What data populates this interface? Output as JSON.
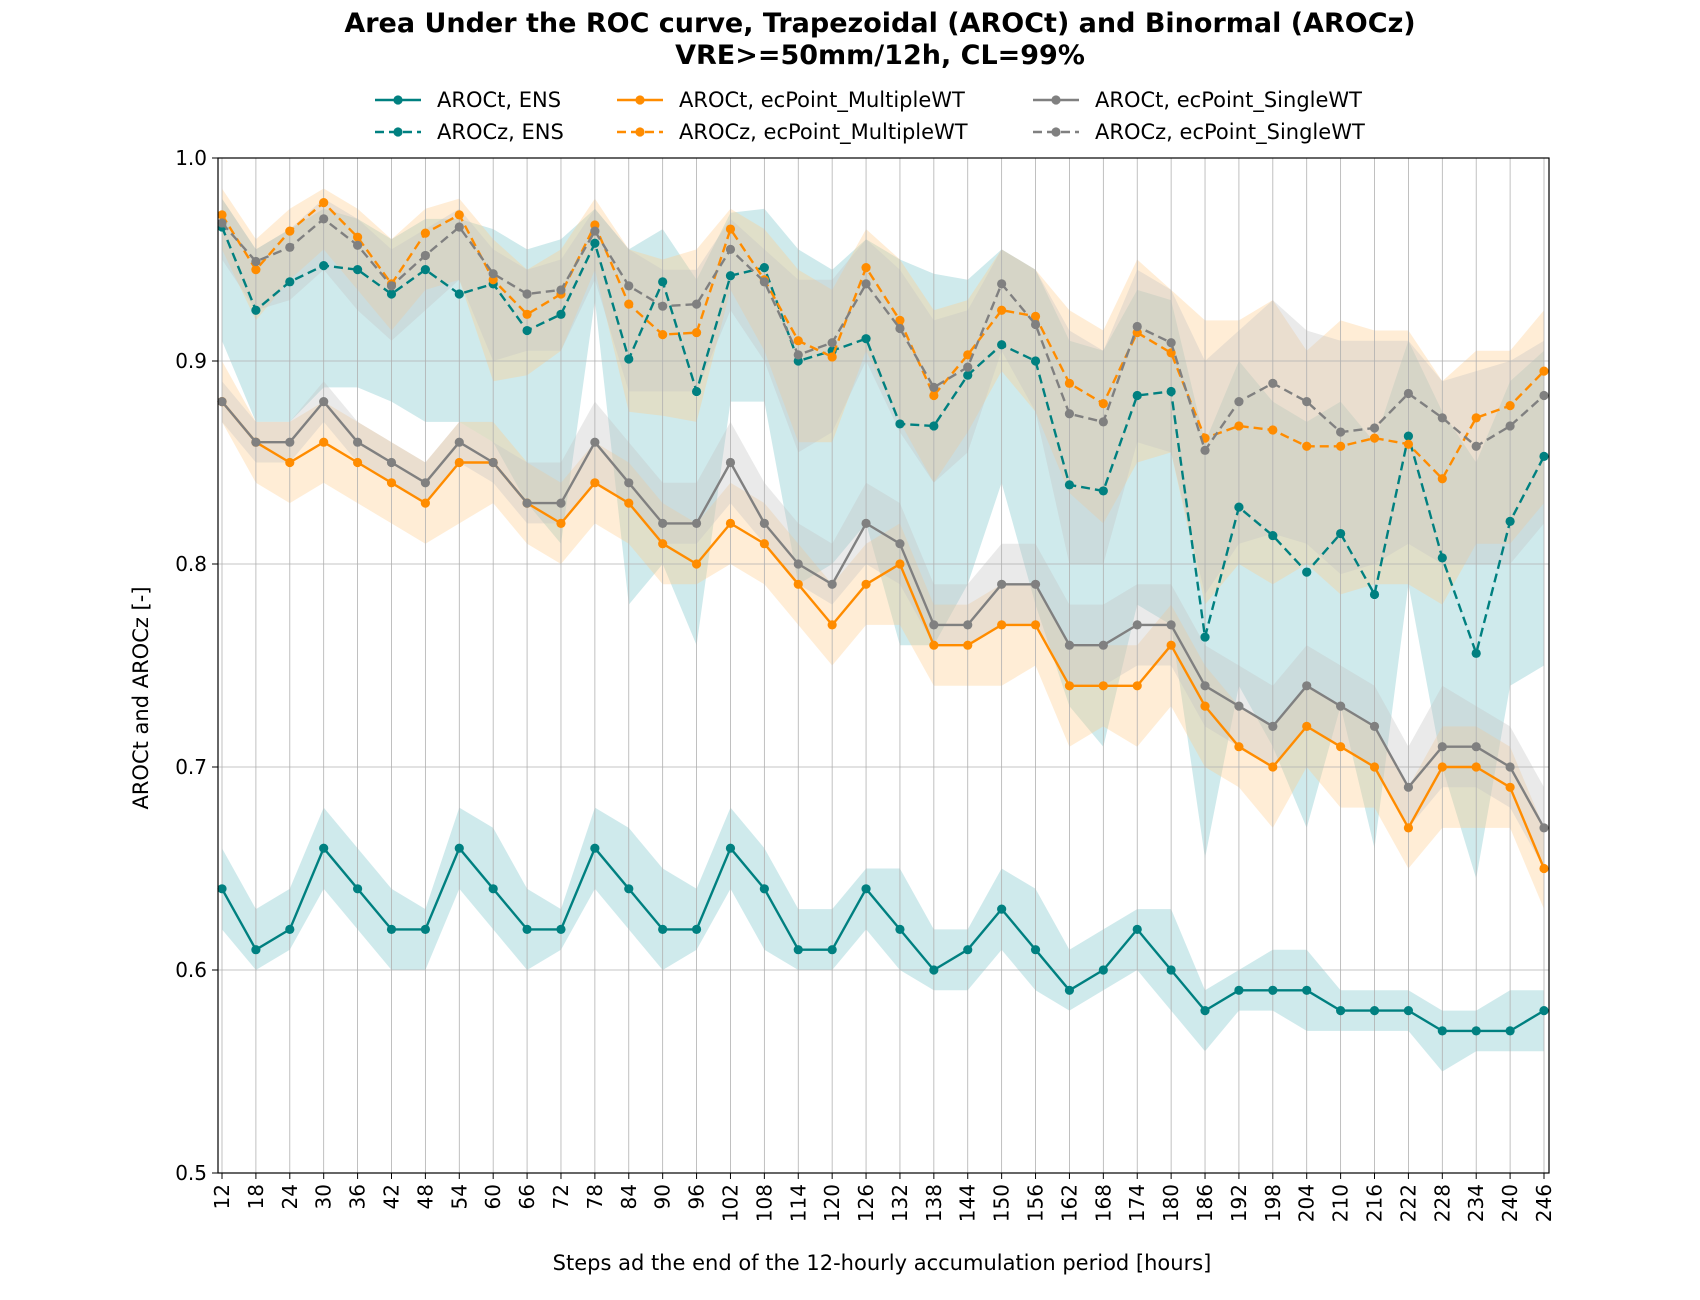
{
  "chart_data": {
    "type": "line",
    "title": "Area Under the ROC curve, Trapezoidal (AROCt) and Binormal (AROCz)",
    "subtitle": "VRE>=50mm/12h, CL=99%",
    "xlabel": "Steps ad the end of the 12-hourly accumulation period [hours]",
    "ylabel": "AROCt and AROCz [-]",
    "ylim": [
      0.5,
      1.0
    ],
    "yticks": [
      "0.5",
      "0.6",
      "0.7",
      "0.8",
      "0.9",
      "1.0"
    ],
    "grid": true,
    "legend_position": "top",
    "x": [
      12,
      18,
      24,
      30,
      36,
      42,
      48,
      54,
      60,
      66,
      72,
      78,
      84,
      90,
      96,
      102,
      108,
      114,
      120,
      126,
      132,
      138,
      144,
      150,
      156,
      162,
      168,
      174,
      180,
      186,
      192,
      198,
      204,
      210,
      216,
      222,
      228,
      234,
      240,
      246
    ],
    "series": [
      {
        "name": "AROCt, ENS",
        "color": "#008080",
        "linestyle": "solid",
        "values": [
          0.64,
          0.61,
          0.62,
          0.66,
          0.64,
          0.62,
          0.62,
          0.66,
          0.64,
          0.62,
          0.62,
          0.66,
          0.64,
          0.62,
          0.62,
          0.66,
          0.64,
          0.61,
          0.61,
          0.64,
          0.62,
          0.6,
          0.61,
          0.63,
          0.61,
          0.59,
          0.6,
          0.62,
          0.6,
          0.58,
          0.59,
          0.59,
          0.59,
          0.58,
          0.58,
          0.58,
          0.57,
          0.57,
          0.57,
          0.58
        ],
        "lower": [
          0.62,
          0.6,
          0.61,
          0.64,
          0.62,
          0.6,
          0.6,
          0.64,
          0.62,
          0.6,
          0.61,
          0.64,
          0.62,
          0.6,
          0.61,
          0.64,
          0.61,
          0.6,
          0.6,
          0.62,
          0.6,
          0.59,
          0.59,
          0.61,
          0.59,
          0.58,
          0.59,
          0.6,
          0.58,
          0.56,
          0.58,
          0.58,
          0.57,
          0.57,
          0.57,
          0.57,
          0.55,
          0.56,
          0.56,
          0.56
        ],
        "upper": [
          0.66,
          0.63,
          0.64,
          0.68,
          0.66,
          0.64,
          0.63,
          0.68,
          0.67,
          0.64,
          0.63,
          0.68,
          0.67,
          0.65,
          0.64,
          0.68,
          0.66,
          0.63,
          0.63,
          0.65,
          0.65,
          0.62,
          0.62,
          0.65,
          0.64,
          0.61,
          0.62,
          0.63,
          0.63,
          0.59,
          0.6,
          0.61,
          0.61,
          0.59,
          0.59,
          0.59,
          0.58,
          0.58,
          0.59,
          0.59
        ]
      },
      {
        "name": "AROCz, ENS",
        "color": "#008080",
        "linestyle": "dashed",
        "values": [
          0.966,
          0.925,
          0.939,
          0.947,
          0.945,
          0.933,
          0.945,
          0.933,
          0.938,
          0.915,
          0.923,
          0.958,
          0.901,
          0.939,
          0.885,
          0.942,
          0.946,
          0.9,
          0.905,
          0.911,
          0.869,
          0.868,
          0.893,
          0.908,
          0.9,
          0.839,
          0.836,
          0.883,
          0.885,
          0.764,
          0.828,
          0.814,
          0.796,
          0.815,
          0.785,
          0.863,
          0.803,
          0.756,
          0.821,
          0.853
        ],
        "lower": [
          0.91,
          0.87,
          0.87,
          0.887,
          0.887,
          0.88,
          0.87,
          0.87,
          0.86,
          0.83,
          0.81,
          0.93,
          0.78,
          0.8,
          0.76,
          0.88,
          0.88,
          0.79,
          0.8,
          0.82,
          0.76,
          0.76,
          0.79,
          0.84,
          0.78,
          0.73,
          0.71,
          0.78,
          0.77,
          0.655,
          0.74,
          0.71,
          0.67,
          0.73,
          0.66,
          0.79,
          0.7,
          0.645,
          0.74,
          0.75
        ],
        "upper": [
          0.98,
          0.955,
          0.965,
          0.975,
          0.97,
          0.96,
          0.97,
          0.97,
          0.965,
          0.955,
          0.96,
          0.975,
          0.955,
          0.965,
          0.94,
          0.973,
          0.975,
          0.955,
          0.945,
          0.96,
          0.95,
          0.943,
          0.94,
          0.955,
          0.945,
          0.91,
          0.905,
          0.935,
          0.93,
          0.86,
          0.9,
          0.88,
          0.87,
          0.88,
          0.86,
          0.91,
          0.875,
          0.85,
          0.89,
          0.905
        ]
      },
      {
        "name": "AROCt, ecPoint_MultipleWT",
        "color": "#ff8c00",
        "linestyle": "solid",
        "values": [
          0.88,
          0.86,
          0.85,
          0.86,
          0.85,
          0.84,
          0.83,
          0.85,
          0.85,
          0.83,
          0.82,
          0.84,
          0.83,
          0.81,
          0.8,
          0.82,
          0.81,
          0.79,
          0.77,
          0.79,
          0.8,
          0.76,
          0.76,
          0.77,
          0.77,
          0.74,
          0.74,
          0.74,
          0.76,
          0.73,
          0.71,
          0.7,
          0.72,
          0.71,
          0.7,
          0.67,
          0.7,
          0.7,
          0.69,
          0.65
        ],
        "lower": [
          0.87,
          0.84,
          0.83,
          0.84,
          0.83,
          0.82,
          0.81,
          0.82,
          0.83,
          0.81,
          0.8,
          0.82,
          0.81,
          0.79,
          0.79,
          0.8,
          0.79,
          0.77,
          0.75,
          0.77,
          0.77,
          0.74,
          0.74,
          0.74,
          0.75,
          0.71,
          0.72,
          0.71,
          0.73,
          0.7,
          0.69,
          0.67,
          0.7,
          0.68,
          0.68,
          0.65,
          0.67,
          0.67,
          0.67,
          0.63
        ],
        "upper": [
          0.9,
          0.87,
          0.87,
          0.88,
          0.87,
          0.86,
          0.85,
          0.87,
          0.87,
          0.85,
          0.84,
          0.86,
          0.85,
          0.83,
          0.82,
          0.84,
          0.83,
          0.81,
          0.79,
          0.81,
          0.82,
          0.78,
          0.78,
          0.79,
          0.79,
          0.76,
          0.76,
          0.76,
          0.78,
          0.75,
          0.73,
          0.72,
          0.74,
          0.73,
          0.72,
          0.69,
          0.72,
          0.72,
          0.71,
          0.67
        ]
      },
      {
        "name": "AROCz, ecPoint_MultipleWT",
        "color": "#ff8c00",
        "linestyle": "dashed",
        "values": [
          0.972,
          0.945,
          0.964,
          0.978,
          0.961,
          0.938,
          0.963,
          0.972,
          0.94,
          0.923,
          0.933,
          0.967,
          0.928,
          0.913,
          0.914,
          0.965,
          0.94,
          0.91,
          0.902,
          0.946,
          0.92,
          0.883,
          0.903,
          0.925,
          0.922,
          0.889,
          0.879,
          0.914,
          0.904,
          0.862,
          0.868,
          0.866,
          0.858,
          0.858,
          0.862,
          0.859,
          0.842,
          0.872,
          0.878,
          0.895
        ],
        "lower": [
          0.955,
          0.92,
          0.94,
          0.955,
          0.935,
          0.915,
          0.935,
          0.94,
          0.89,
          0.893,
          0.905,
          0.945,
          0.875,
          0.873,
          0.87,
          0.935,
          0.905,
          0.86,
          0.86,
          0.905,
          0.87,
          0.84,
          0.865,
          0.895,
          0.875,
          0.835,
          0.82,
          0.85,
          0.855,
          0.78,
          0.8,
          0.79,
          0.8,
          0.785,
          0.79,
          0.79,
          0.78,
          0.81,
          0.81,
          0.83
        ],
        "upper": [
          0.985,
          0.96,
          0.975,
          0.985,
          0.975,
          0.96,
          0.975,
          0.98,
          0.96,
          0.945,
          0.955,
          0.98,
          0.955,
          0.95,
          0.955,
          0.975,
          0.965,
          0.945,
          0.935,
          0.965,
          0.95,
          0.925,
          0.93,
          0.955,
          0.945,
          0.925,
          0.915,
          0.95,
          0.935,
          0.92,
          0.92,
          0.93,
          0.905,
          0.92,
          0.915,
          0.915,
          0.89,
          0.905,
          0.905,
          0.925
        ]
      },
      {
        "name": "AROCt, ecPoint_SingleWT",
        "color": "#808080",
        "linestyle": "solid",
        "values": [
          0.88,
          0.86,
          0.86,
          0.88,
          0.86,
          0.85,
          0.84,
          0.86,
          0.85,
          0.83,
          0.83,
          0.86,
          0.84,
          0.82,
          0.82,
          0.85,
          0.82,
          0.8,
          0.79,
          0.82,
          0.81,
          0.77,
          0.77,
          0.79,
          0.79,
          0.76,
          0.76,
          0.77,
          0.77,
          0.74,
          0.73,
          0.72,
          0.74,
          0.73,
          0.72,
          0.69,
          0.71,
          0.71,
          0.7,
          0.67
        ],
        "lower": [
          0.87,
          0.85,
          0.85,
          0.87,
          0.85,
          0.84,
          0.83,
          0.85,
          0.84,
          0.82,
          0.82,
          0.84,
          0.83,
          0.81,
          0.81,
          0.83,
          0.81,
          0.79,
          0.78,
          0.8,
          0.79,
          0.76,
          0.76,
          0.77,
          0.77,
          0.74,
          0.74,
          0.75,
          0.75,
          0.72,
          0.71,
          0.7,
          0.72,
          0.71,
          0.7,
          0.67,
          0.69,
          0.69,
          0.68,
          0.65
        ],
        "upper": [
          0.89,
          0.87,
          0.87,
          0.89,
          0.87,
          0.86,
          0.85,
          0.87,
          0.86,
          0.85,
          0.85,
          0.88,
          0.86,
          0.84,
          0.84,
          0.87,
          0.84,
          0.82,
          0.81,
          0.84,
          0.83,
          0.79,
          0.79,
          0.81,
          0.81,
          0.78,
          0.78,
          0.79,
          0.79,
          0.76,
          0.75,
          0.74,
          0.76,
          0.75,
          0.74,
          0.71,
          0.74,
          0.73,
          0.72,
          0.69
        ]
      },
      {
        "name": "AROCz, ecPoint_SingleWT",
        "color": "#808080",
        "linestyle": "dashed",
        "values": [
          0.968,
          0.949,
          0.956,
          0.97,
          0.957,
          0.937,
          0.952,
          0.966,
          0.943,
          0.933,
          0.935,
          0.964,
          0.937,
          0.927,
          0.928,
          0.955,
          0.939,
          0.903,
          0.909,
          0.938,
          0.916,
          0.887,
          0.897,
          0.938,
          0.918,
          0.874,
          0.87,
          0.917,
          0.909,
          0.856,
          0.88,
          0.889,
          0.88,
          0.865,
          0.867,
          0.884,
          0.872,
          0.858,
          0.868,
          0.883
        ],
        "lower": [
          0.95,
          0.925,
          0.93,
          0.945,
          0.925,
          0.91,
          0.925,
          0.94,
          0.9,
          0.905,
          0.905,
          0.94,
          0.885,
          0.885,
          0.885,
          0.925,
          0.9,
          0.855,
          0.865,
          0.9,
          0.865,
          0.84,
          0.855,
          0.905,
          0.875,
          0.8,
          0.8,
          0.86,
          0.855,
          0.785,
          0.81,
          0.815,
          0.81,
          0.795,
          0.8,
          0.81,
          0.8,
          0.8,
          0.8,
          0.82
        ],
        "upper": [
          0.98,
          0.955,
          0.965,
          0.98,
          0.97,
          0.955,
          0.965,
          0.975,
          0.955,
          0.945,
          0.95,
          0.975,
          0.955,
          0.945,
          0.945,
          0.97,
          0.955,
          0.94,
          0.94,
          0.96,
          0.945,
          0.92,
          0.925,
          0.955,
          0.945,
          0.915,
          0.905,
          0.945,
          0.935,
          0.9,
          0.915,
          0.93,
          0.915,
          0.91,
          0.91,
          0.91,
          0.89,
          0.895,
          0.9,
          0.91
        ]
      }
    ]
  }
}
